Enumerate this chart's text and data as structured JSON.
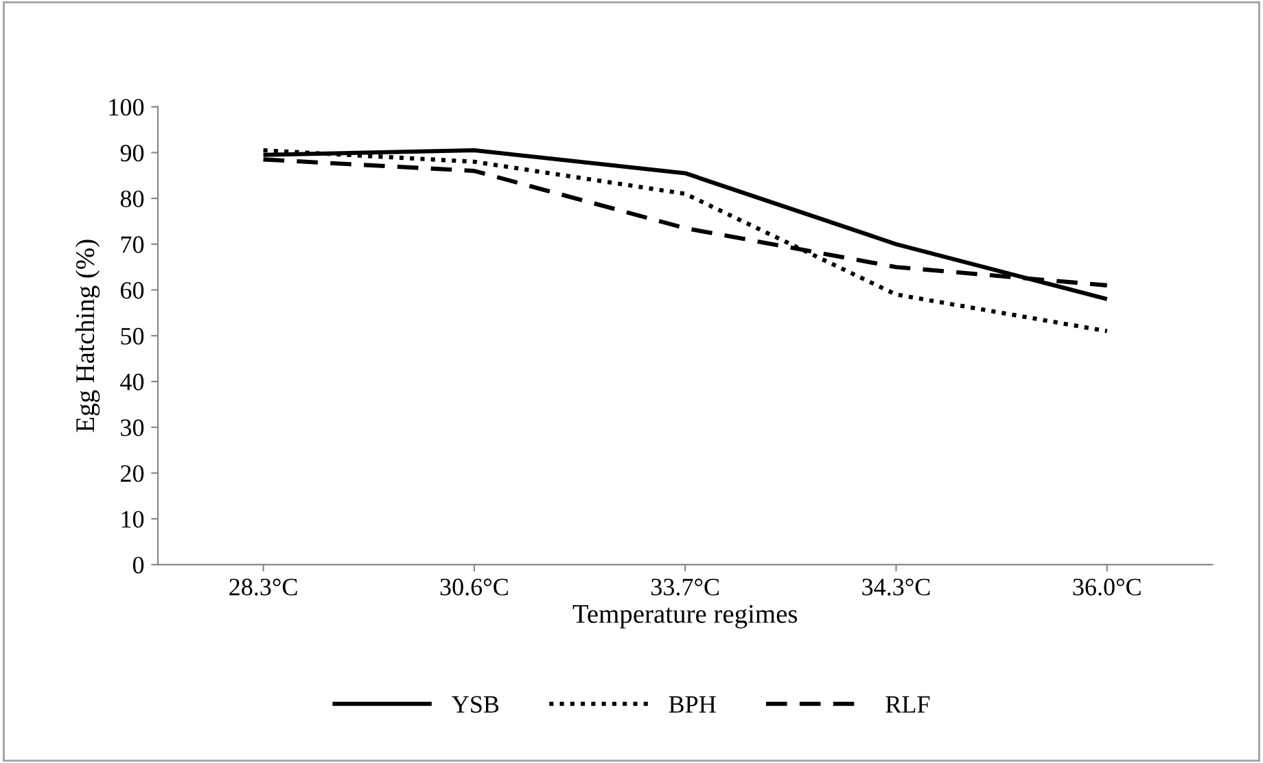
{
  "chart_data": {
    "type": "line",
    "xlabel": "Temperature regimes",
    "ylabel": "Egg Hatching (%)",
    "categories": [
      "28.3°C",
      "30.6°C",
      "33.7°C",
      "34.3°C",
      "36.0°C"
    ],
    "series": [
      {
        "name": "YSB",
        "color": "#000000",
        "line_style": "solid",
        "values": [
          89.5,
          90.5,
          85.5,
          70,
          58
        ]
      },
      {
        "name": "BPH",
        "color": "#000000",
        "line_style": "dotted",
        "values": [
          90.5,
          88,
          81,
          59,
          51
        ]
      },
      {
        "name": "RLF",
        "color": "#000000",
        "line_style": "dashed",
        "values": [
          88.5,
          86,
          73.5,
          65,
          61
        ]
      }
    ],
    "ylim": [
      0,
      100
    ],
    "yticks": [
      0,
      10,
      20,
      30,
      40,
      50,
      60,
      70,
      80,
      90,
      100
    ],
    "grid": false,
    "legend": "bottom",
    "marker": "none"
  }
}
